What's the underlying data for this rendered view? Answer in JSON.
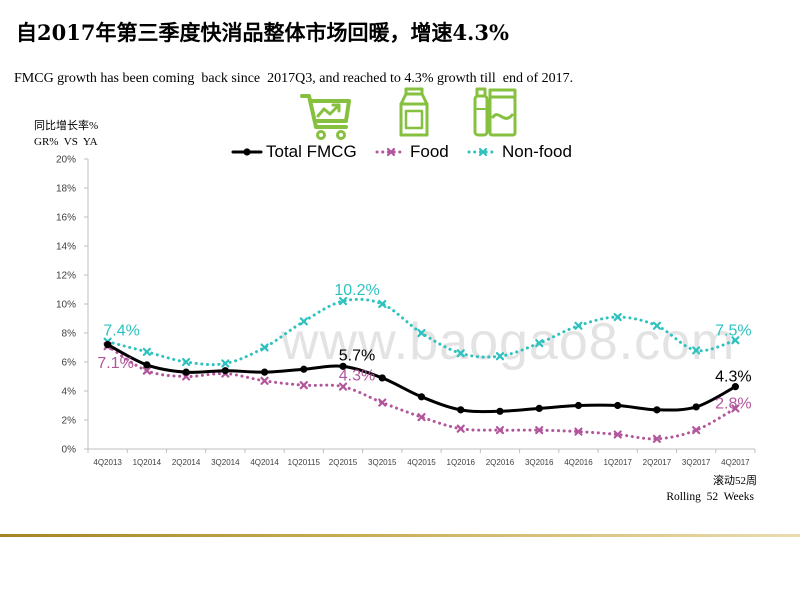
{
  "slide": {
    "title": "自2017年第三季度快消品整体市场回暖，增速4.3%",
    "subtitle": "FMCG growth has been coming  back since  2017Q3, and reached to 4.3% growth till  end of 2017.",
    "watermark": "www.baogao8.com",
    "footnote_cn": "滚动52周",
    "footnote_en": "Rolling  52  Weeks"
  },
  "icons": {
    "first": "shopping-cart-chart-icon",
    "second": "milk-carton-icon",
    "third": "bottle-and-jar-icon",
    "color": "#86C03F"
  },
  "chart_data": {
    "type": "line",
    "ylabel_cn": "同比增长率%",
    "ylabel_en": "GR%  VS  YA",
    "ylim": [
      0,
      20
    ],
    "y_step": 2,
    "y_tick_labels": [
      "0%",
      "2%",
      "4%",
      "6%",
      "8%",
      "10%",
      "12%",
      "14%",
      "16%",
      "18%",
      "20%"
    ],
    "categories": [
      "4Q2013",
      "1Q2014",
      "2Q2014",
      "3Q2014",
      "4Q2014",
      "1Q20115",
      "2Q2015",
      "3Q2015",
      "4Q2015",
      "1Q2016",
      "2Q2016",
      "3Q2016",
      "4Q2016",
      "1Q2017",
      "2Q2017",
      "3Q2017",
      "4Q2017"
    ],
    "series": [
      {
        "name": "Total FMCG",
        "color": "#000000",
        "line": "solid",
        "marker": "circle",
        "smooth": true,
        "values": [
          7.2,
          5.8,
          5.3,
          5.4,
          5.3,
          5.5,
          5.7,
          4.9,
          3.6,
          2.7,
          2.6,
          2.8,
          3.0,
          3.0,
          2.7,
          2.9,
          4.3
        ]
      },
      {
        "name": "Food",
        "color": "#B2569C",
        "line": "dotted",
        "marker": "x",
        "smooth": true,
        "values": [
          7.1,
          5.4,
          5.0,
          5.2,
          4.7,
          4.4,
          4.3,
          3.2,
          2.2,
          1.4,
          1.3,
          1.3,
          1.2,
          1.0,
          0.7,
          1.3,
          2.8
        ]
      },
      {
        "name": "Non-food",
        "color": "#2EC2BF",
        "line": "dotted",
        "marker": "x",
        "smooth": true,
        "values": [
          7.4,
          6.7,
          6.0,
          5.9,
          7.0,
          8.8,
          10.2,
          10.0,
          8.0,
          6.6,
          6.4,
          7.3,
          8.5,
          9.1,
          8.5,
          6.8,
          7.5
        ]
      }
    ],
    "data_labels": [
      {
        "series": 2,
        "index": 0,
        "text": "7.4%",
        "placement": "above-right"
      },
      {
        "series": 1,
        "index": 0,
        "text": "7.1%",
        "placement": "below-right"
      },
      {
        "series": 2,
        "index": 6,
        "text": "10.2%",
        "placement": "above-right"
      },
      {
        "series": 0,
        "index": 6,
        "text": "5.7%",
        "placement": "above-right"
      },
      {
        "series": 1,
        "index": 6,
        "text": "4.3%",
        "placement": "above-right"
      },
      {
        "series": 2,
        "index": 16,
        "text": "7.5%",
        "placement": "above"
      },
      {
        "series": 0,
        "index": 16,
        "text": "4.3%",
        "placement": "above"
      },
      {
        "series": 1,
        "index": 16,
        "text": "2.8%",
        "placement": "at-point"
      }
    ],
    "legend": "top",
    "grid": false
  }
}
